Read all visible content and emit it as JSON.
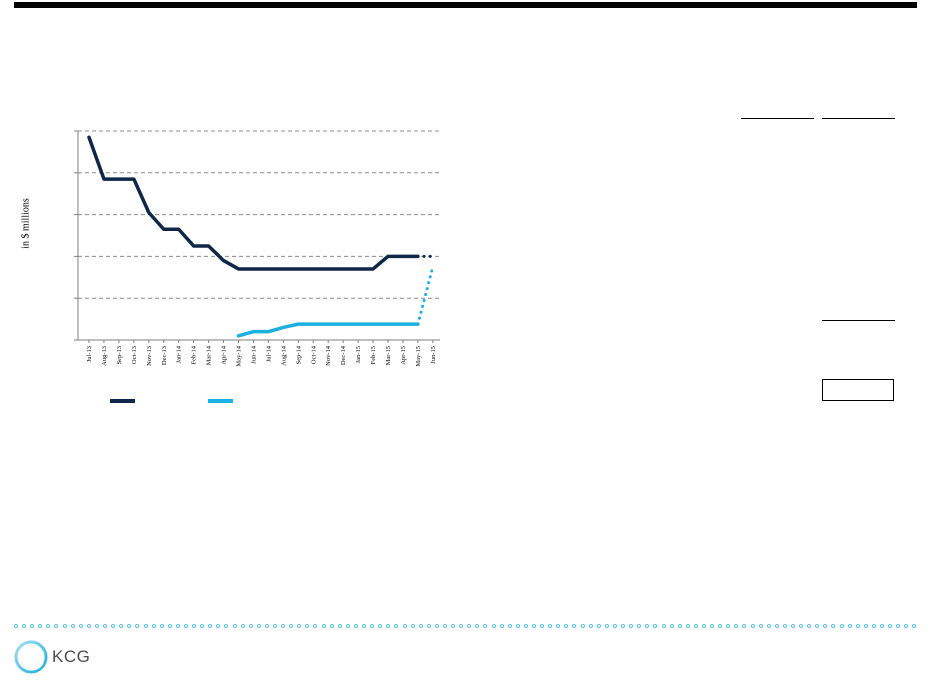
{
  "colors": {
    "primary_series": "#0f2748",
    "secondary_series": "#1ab0e0",
    "grid": "#8c8c8c",
    "footer_dots": "#5bc3e8",
    "logo_text": "#4d4d4d"
  },
  "brand": {
    "logo_text": "KCG"
  },
  "chart_data": {
    "type": "line",
    "ylabel": "in $ millions",
    "categories": [
      "Jul-13",
      "Aug-13",
      "Sep-13",
      "Oct-13",
      "Nov-13",
      "Dec-13",
      "Jan-14",
      "Feb-14",
      "Mar-14",
      "Apr-14",
      "May-14",
      "Jun-14",
      "Jul-14",
      "Aug-14",
      "Sep-14",
      "Oct-14",
      "Nov-14",
      "Dec-14",
      "Jan-15",
      "Feb-15",
      "Mar-15",
      "Apr-15",
      "May-15",
      "Jun-15"
    ],
    "ylim": [
      0,
      5
    ],
    "grid": true,
    "series": [
      {
        "values": [
          4.85,
          3.85,
          3.85,
          3.85,
          3.05,
          2.65,
          2.65,
          2.25,
          2.25,
          1.9,
          1.7,
          1.7,
          1.7,
          1.7,
          1.7,
          1.7,
          1.7,
          1.7,
          1.7,
          1.7,
          2.0,
          2.0,
          2.0,
          null
        ],
        "projected_values": [
          null,
          null,
          null,
          null,
          null,
          null,
          null,
          null,
          null,
          null,
          null,
          null,
          null,
          null,
          null,
          null,
          null,
          null,
          null,
          null,
          null,
          null,
          2.0,
          2.0
        ]
      },
      {
        "values": [
          null,
          null,
          null,
          null,
          null,
          null,
          null,
          null,
          null,
          null,
          0.1,
          0.2,
          0.2,
          0.3,
          0.38,
          0.38,
          0.38,
          0.38,
          0.38,
          0.38,
          0.38,
          0.38,
          0.38,
          null
        ],
        "projected_values": [
          null,
          null,
          null,
          null,
          null,
          null,
          null,
          null,
          null,
          null,
          null,
          null,
          null,
          null,
          null,
          null,
          null,
          null,
          null,
          null,
          null,
          null,
          0.38,
          1.75
        ]
      }
    ]
  }
}
